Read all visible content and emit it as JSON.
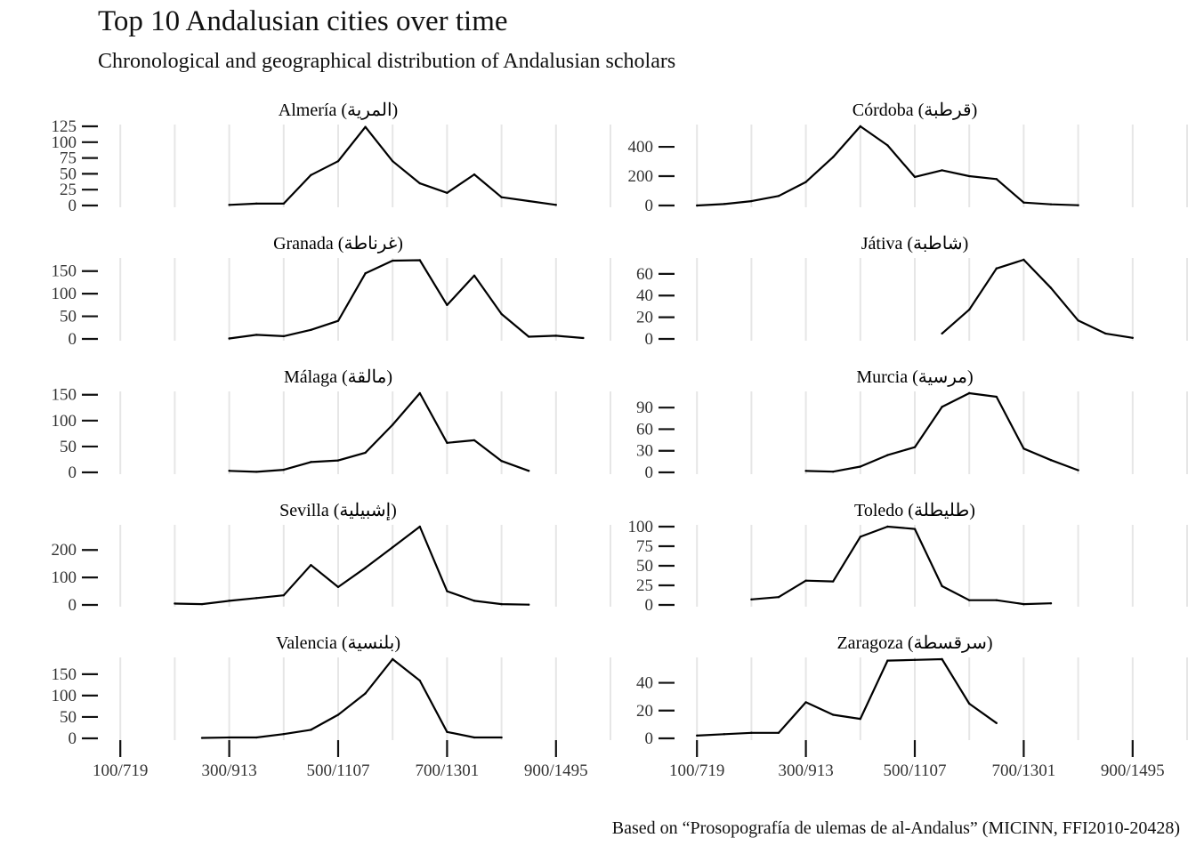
{
  "title": "Top 10 Andalusian cities over time",
  "subtitle": "Chronological and geographical distribution of Andalusian scholars",
  "caption": "Based on “Prosopografía de ulemas de al-Andalus” (MICINN, FFI2010-20428)",
  "chart_data": {
    "type": "line",
    "layout": "small-multiples",
    "columns": 2,
    "xlim": [
      0,
      1000
    ],
    "x_ticks": [
      100,
      300,
      500,
      700,
      900
    ],
    "x_tick_labels": [
      "100/719",
      "300/913",
      "500/1107",
      "700/1301",
      "900/1495"
    ],
    "x_gridlines": [
      100,
      200,
      300,
      400,
      500,
      600,
      700,
      800,
      900,
      1000
    ],
    "line_color": "#000000",
    "grid_color": "#e6e6e6",
    "panels": [
      {
        "name": "Almería (المرية)",
        "y_ticks": [
          0,
          25,
          50,
          75,
          100,
          125
        ],
        "ylim": [
          0,
          125
        ],
        "x": [
          300,
          350,
          400,
          450,
          500,
          550,
          600,
          650,
          700,
          750,
          800,
          850,
          900
        ],
        "y": [
          1,
          3,
          3,
          48,
          70,
          124,
          70,
          35,
          20,
          49,
          13,
          7,
          1
        ]
      },
      {
        "name": "Córdoba (قرطبة)",
        "y_ticks": [
          0,
          200,
          400
        ],
        "ylim": [
          0,
          540
        ],
        "x": [
          100,
          150,
          200,
          250,
          300,
          350,
          400,
          450,
          500,
          550,
          600,
          650,
          700,
          750,
          800
        ],
        "y": [
          0,
          10,
          30,
          65,
          160,
          330,
          540,
          410,
          195,
          240,
          200,
          180,
          20,
          8,
          2
        ]
      },
      {
        "name": "Granada (غرناطة)",
        "y_ticks": [
          0,
          50,
          100,
          150
        ],
        "ylim": [
          0,
          175
        ],
        "x": [
          300,
          350,
          400,
          450,
          500,
          550,
          600,
          650,
          700,
          750,
          800,
          850,
          900,
          950
        ],
        "y": [
          1,
          9,
          6,
          20,
          40,
          145,
          173,
          174,
          75,
          140,
          55,
          5,
          7,
          2
        ]
      },
      {
        "name": "Játiva (شاطبة)",
        "y_ticks": [
          0,
          20,
          40,
          60
        ],
        "ylim": [
          0,
          73
        ],
        "x": [
          550,
          600,
          650,
          700,
          750,
          800,
          850,
          900
        ],
        "y": [
          5,
          27,
          65,
          73,
          47,
          17,
          5,
          1
        ]
      },
      {
        "name": "Málaga (مالقة)",
        "y_ticks": [
          0,
          50,
          100,
          150
        ],
        "ylim": [
          0,
          153
        ],
        "x": [
          300,
          350,
          400,
          450,
          500,
          550,
          600,
          650,
          700,
          750,
          800,
          850
        ],
        "y": [
          3,
          1,
          5,
          20,
          23,
          38,
          92,
          153,
          57,
          62,
          22,
          3
        ]
      },
      {
        "name": "Murcia (مرسية)",
        "y_ticks": [
          0,
          30,
          60,
          90
        ],
        "ylim": [
          0,
          110
        ],
        "x": [
          300,
          350,
          400,
          450,
          500,
          550,
          600,
          650,
          700,
          750,
          800
        ],
        "y": [
          2,
          1,
          8,
          24,
          35,
          91,
          110,
          105,
          33,
          17,
          3
        ]
      },
      {
        "name": "Sevilla (إشبيلية)",
        "y_ticks": [
          0,
          100,
          200
        ],
        "ylim": [
          0,
          285
        ],
        "x": [
          200,
          250,
          300,
          350,
          400,
          450,
          500,
          550,
          600,
          650,
          700,
          750,
          800,
          850
        ],
        "y": [
          5,
          3,
          15,
          25,
          35,
          145,
          65,
          135,
          210,
          285,
          50,
          15,
          3,
          1
        ]
      },
      {
        "name": "Toledo (طليطلة)",
        "y_ticks": [
          0,
          25,
          50,
          75,
          100
        ],
        "ylim": [
          0,
          100
        ],
        "x": [
          200,
          250,
          300,
          350,
          400,
          450,
          500,
          550,
          600,
          650,
          700,
          750
        ],
        "y": [
          7,
          10,
          31,
          30,
          87,
          100,
          97,
          24,
          6,
          6,
          1,
          2
        ]
      },
      {
        "name": "Valencia (بلنسية)",
        "y_ticks": [
          0,
          50,
          100,
          150
        ],
        "ylim": [
          0,
          185
        ],
        "x": [
          250,
          300,
          350,
          400,
          450,
          500,
          550,
          600,
          650,
          700,
          750,
          800
        ],
        "y": [
          1,
          2,
          2,
          10,
          20,
          55,
          105,
          185,
          135,
          15,
          2,
          2
        ]
      },
      {
        "name": "Zaragoza (سرقسطة)",
        "y_ticks": [
          0,
          20,
          40
        ],
        "ylim": [
          0,
          57
        ],
        "x": [
          100,
          150,
          200,
          250,
          300,
          350,
          400,
          450,
          500,
          550,
          600,
          650
        ],
        "y": [
          2,
          3,
          4,
          4,
          26,
          17,
          14,
          56,
          56.5,
          57,
          25,
          11
        ]
      }
    ]
  }
}
